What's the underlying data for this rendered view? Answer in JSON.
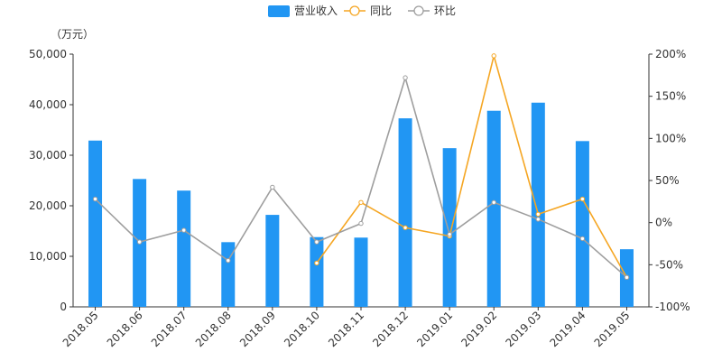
{
  "chart_data": {
    "type": "bar",
    "categories": [
      "2018.05",
      "2018.06",
      "2018.07",
      "2018.08",
      "2018.09",
      "2018.10",
      "2018.11",
      "2018.12",
      "2019.01",
      "2019.02",
      "2019.03",
      "2019.04",
      "2019.05"
    ],
    "y_unit": "（万元）",
    "y_left": {
      "min": 0,
      "max": 50000,
      "ticks": [
        0,
        10000,
        20000,
        30000,
        40000,
        50000
      ],
      "tick_labels": [
        "0",
        "10,000",
        "20,000",
        "30,000",
        "40,000",
        "50,000"
      ]
    },
    "y_right": {
      "min": -100,
      "max": 200,
      "ticks": [
        -100,
        -50,
        0,
        50,
        100,
        150,
        200
      ],
      "tick_labels": [
        "-100%",
        "-50%",
        "0%",
        "50%",
        "100%",
        "150%",
        "200%"
      ]
    },
    "series": [
      {
        "name": "营业收入",
        "kind": "bar",
        "axis": "left",
        "color": "#2196F3",
        "values": [
          32900,
          25300,
          23000,
          12800,
          18200,
          13800,
          13700,
          37300,
          31400,
          38800,
          40400,
          32800,
          11400
        ]
      },
      {
        "name": "同比",
        "kind": "line",
        "axis": "right",
        "color": "#F5A623",
        "values": [
          null,
          null,
          null,
          null,
          null,
          -48,
          24,
          -6,
          -16,
          198,
          10,
          28,
          -65
        ]
      },
      {
        "name": "环比",
        "kind": "line",
        "axis": "right",
        "color": "#9E9E9E",
        "values": [
          28,
          -23,
          -9,
          -45,
          42,
          -23,
          -1,
          172,
          -14,
          24,
          4,
          -19,
          -65
        ]
      }
    ],
    "legend_position": "top-center",
    "grid": false
  }
}
